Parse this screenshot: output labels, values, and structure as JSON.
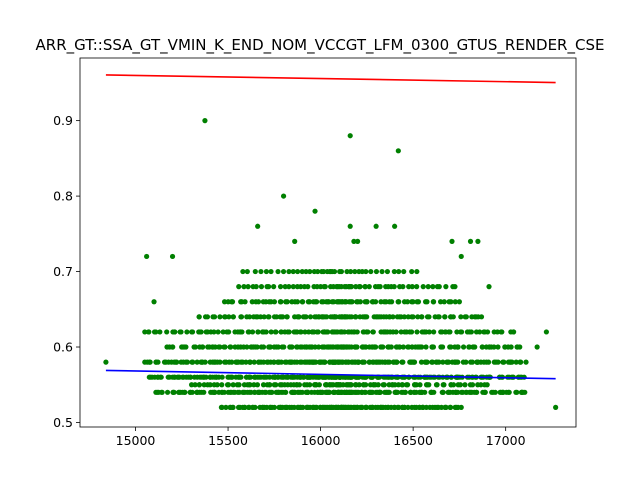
{
  "chart_data": {
    "type": "scatter",
    "title": "ARR_GT::SSA_GT_VMIN_K_END_NOM_VCCGT_LFM_0300_GTUS_RENDER_CSE",
    "xlabel": "",
    "ylabel": "",
    "xlim": [
      14700,
      17380
    ],
    "ylim": [
      0.494,
      0.983
    ],
    "xticks": [
      15000,
      15500,
      16000,
      16500,
      17000
    ],
    "yticks": [
      0.5,
      0.6,
      0.7,
      0.8,
      0.9
    ],
    "xtick_labels": [
      "15000",
      "15500",
      "16000",
      "16500",
      "17000"
    ],
    "ytick_labels": [
      "0.5",
      "0.6",
      "0.7",
      "0.8",
      "0.9"
    ],
    "grid": false,
    "colors": {
      "scatter": "#008000",
      "upper_line": "#ff0000",
      "lower_line": "#0000ff"
    },
    "lines": [
      {
        "color": "#ff0000",
        "x": [
          14840,
          17270
        ],
        "y": [
          0.9605,
          0.9505
        ]
      },
      {
        "color": "#0000ff",
        "x": [
          14840,
          17270
        ],
        "y": [
          0.569,
          0.558
        ]
      }
    ],
    "scatter_outliers": [
      {
        "x": 15375,
        "y": 0.9
      },
      {
        "x": 16160,
        "y": 0.88
      },
      {
        "x": 16420,
        "y": 0.86
      },
      {
        "x": 15800,
        "y": 0.8
      },
      {
        "x": 15970,
        "y": 0.78
      },
      {
        "x": 15660,
        "y": 0.76
      },
      {
        "x": 16160,
        "y": 0.76
      },
      {
        "x": 16300,
        "y": 0.76
      },
      {
        "x": 16400,
        "y": 0.76
      },
      {
        "x": 15860,
        "y": 0.74
      },
      {
        "x": 16180,
        "y": 0.74
      },
      {
        "x": 16200,
        "y": 0.74
      },
      {
        "x": 16710,
        "y": 0.74
      },
      {
        "x": 16810,
        "y": 0.74
      },
      {
        "x": 16850,
        "y": 0.74
      },
      {
        "x": 15060,
        "y": 0.72
      },
      {
        "x": 15200,
        "y": 0.72
      },
      {
        "x": 16760,
        "y": 0.72
      },
      {
        "x": 16910,
        "y": 0.68
      },
      {
        "x": 15100,
        "y": 0.66
      },
      {
        "x": 17220,
        "y": 0.62
      },
      {
        "x": 17170,
        "y": 0.6
      },
      {
        "x": 14840,
        "y": 0.58
      },
      {
        "x": 17270,
        "y": 0.52
      }
    ],
    "scatter_bands": [
      {
        "y": 0.52,
        "x": [
          15460,
          16760
        ],
        "count": 140
      },
      {
        "y": 0.54,
        "x": [
          15110,
          17120
        ],
        "count": 220
      },
      {
        "y": 0.55,
        "x": [
          15300,
          16900
        ],
        "count": 110
      },
      {
        "y": 0.56,
        "x": [
          15070,
          17100
        ],
        "count": 230
      },
      {
        "y": 0.58,
        "x": [
          15050,
          17110
        ],
        "count": 190
      },
      {
        "y": 0.6,
        "x": [
          15170,
          17080
        ],
        "count": 160
      },
      {
        "y": 0.62,
        "x": [
          15050,
          17050
        ],
        "count": 140
      },
      {
        "y": 0.64,
        "x": [
          15340,
          16880
        ],
        "count": 110
      },
      {
        "y": 0.66,
        "x": [
          15470,
          16750
        ],
        "count": 80
      },
      {
        "y": 0.68,
        "x": [
          15550,
          16730
        ],
        "count": 60
      },
      {
        "y": 0.7,
        "x": [
          15580,
          16520
        ],
        "count": 40
      }
    ]
  }
}
